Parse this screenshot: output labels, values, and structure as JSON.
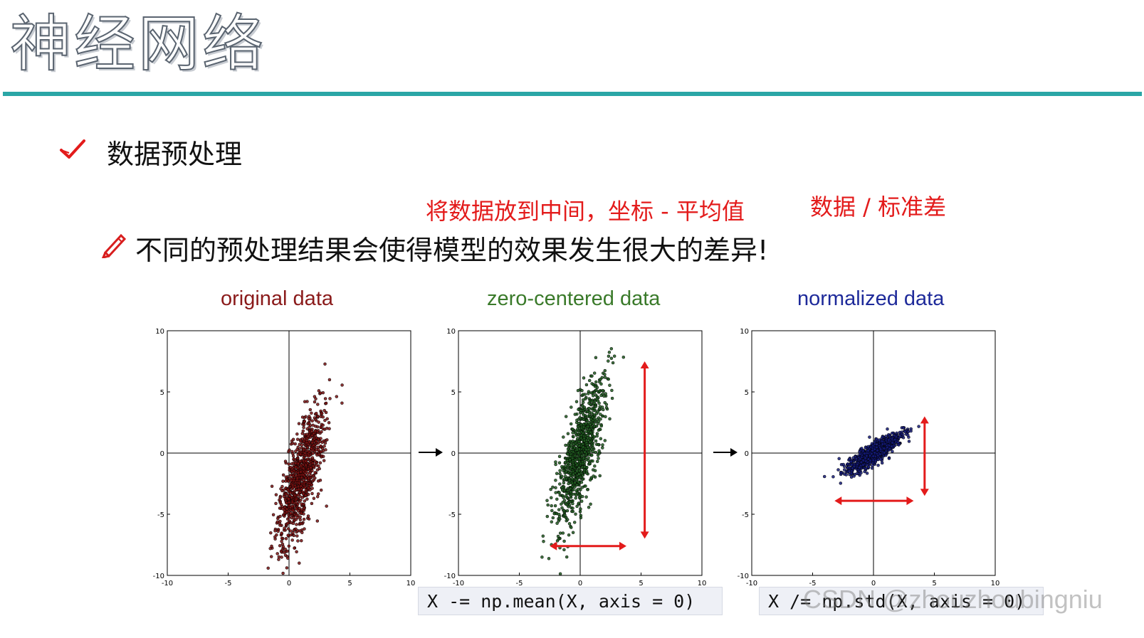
{
  "slide": {
    "title": "神经网络",
    "section_heading": "数据预处理",
    "notes": {
      "center_note": "将数据放到中间，坐标 - 平均值",
      "std_note": "数据 / 标准差"
    },
    "statement": "不同的预处理结果会使得模型的效果发生很大的差异!",
    "icons": {
      "bullet": "check-icon",
      "statement": "pencil-icon",
      "transition": "arrow-right-icon"
    },
    "colors": {
      "title_rule": "#2aa6a6",
      "annotation": "#e31b1b",
      "original": "#7a1010",
      "zero_centered": "#1e5a1e",
      "normalized": "#141a7a"
    },
    "code": {
      "mean": "X -= np.mean(X, axis = 0)",
      "std": "X /= np.std(X, axis = 0)"
    },
    "watermark": "CSDN @zhouzhoubingniu"
  },
  "chart_data": [
    {
      "type": "scatter",
      "title": "original data",
      "xlim": [
        -10,
        10
      ],
      "ylim": [
        -10,
        10
      ],
      "xticks": [
        "-10",
        "-5",
        "0",
        "5",
        "10"
      ],
      "yticks": [
        "-10",
        "-5",
        "0",
        "5",
        "10"
      ],
      "center": [
        1.0,
        -2.0
      ],
      "spread": {
        "major_sd": 3.0,
        "minor_sd": 0.65,
        "slope_deg": 75
      },
      "point_count": 900,
      "grid": false
    },
    {
      "type": "scatter",
      "title": "zero-centered data",
      "xlim": [
        -10,
        10
      ],
      "ylim": [
        -10,
        10
      ],
      "xticks": [
        "-10",
        "-5",
        "0",
        "5",
        "10"
      ],
      "yticks": [
        "-10",
        "-5",
        "0",
        "5",
        "10"
      ],
      "center": [
        0,
        0
      ],
      "spread": {
        "major_sd": 3.0,
        "minor_sd": 0.65,
        "slope_deg": 75
      },
      "point_count": 900,
      "grid": false,
      "annotations": {
        "vertical_arrow": [
          -7,
          7.5
        ],
        "horizontal_arrow": [
          -2.5,
          3.8
        ]
      }
    },
    {
      "type": "scatter",
      "title": "normalized data",
      "xlim": [
        -10,
        10
      ],
      "ylim": [
        -10,
        10
      ],
      "xticks": [
        "-10",
        "-5",
        "0",
        "5",
        "10"
      ],
      "yticks": [
        "-10",
        "-5",
        "0",
        "5",
        "10"
      ],
      "center": [
        0,
        0
      ],
      "spread": {
        "major_sd": 1.3,
        "minor_sd": 0.35,
        "slope_deg": 35
      },
      "point_count": 900,
      "grid": false,
      "annotations": {
        "vertical_arrow": [
          -3.5,
          3.0
        ],
        "horizontal_arrow": [
          -3.2,
          3.3
        ]
      }
    }
  ]
}
